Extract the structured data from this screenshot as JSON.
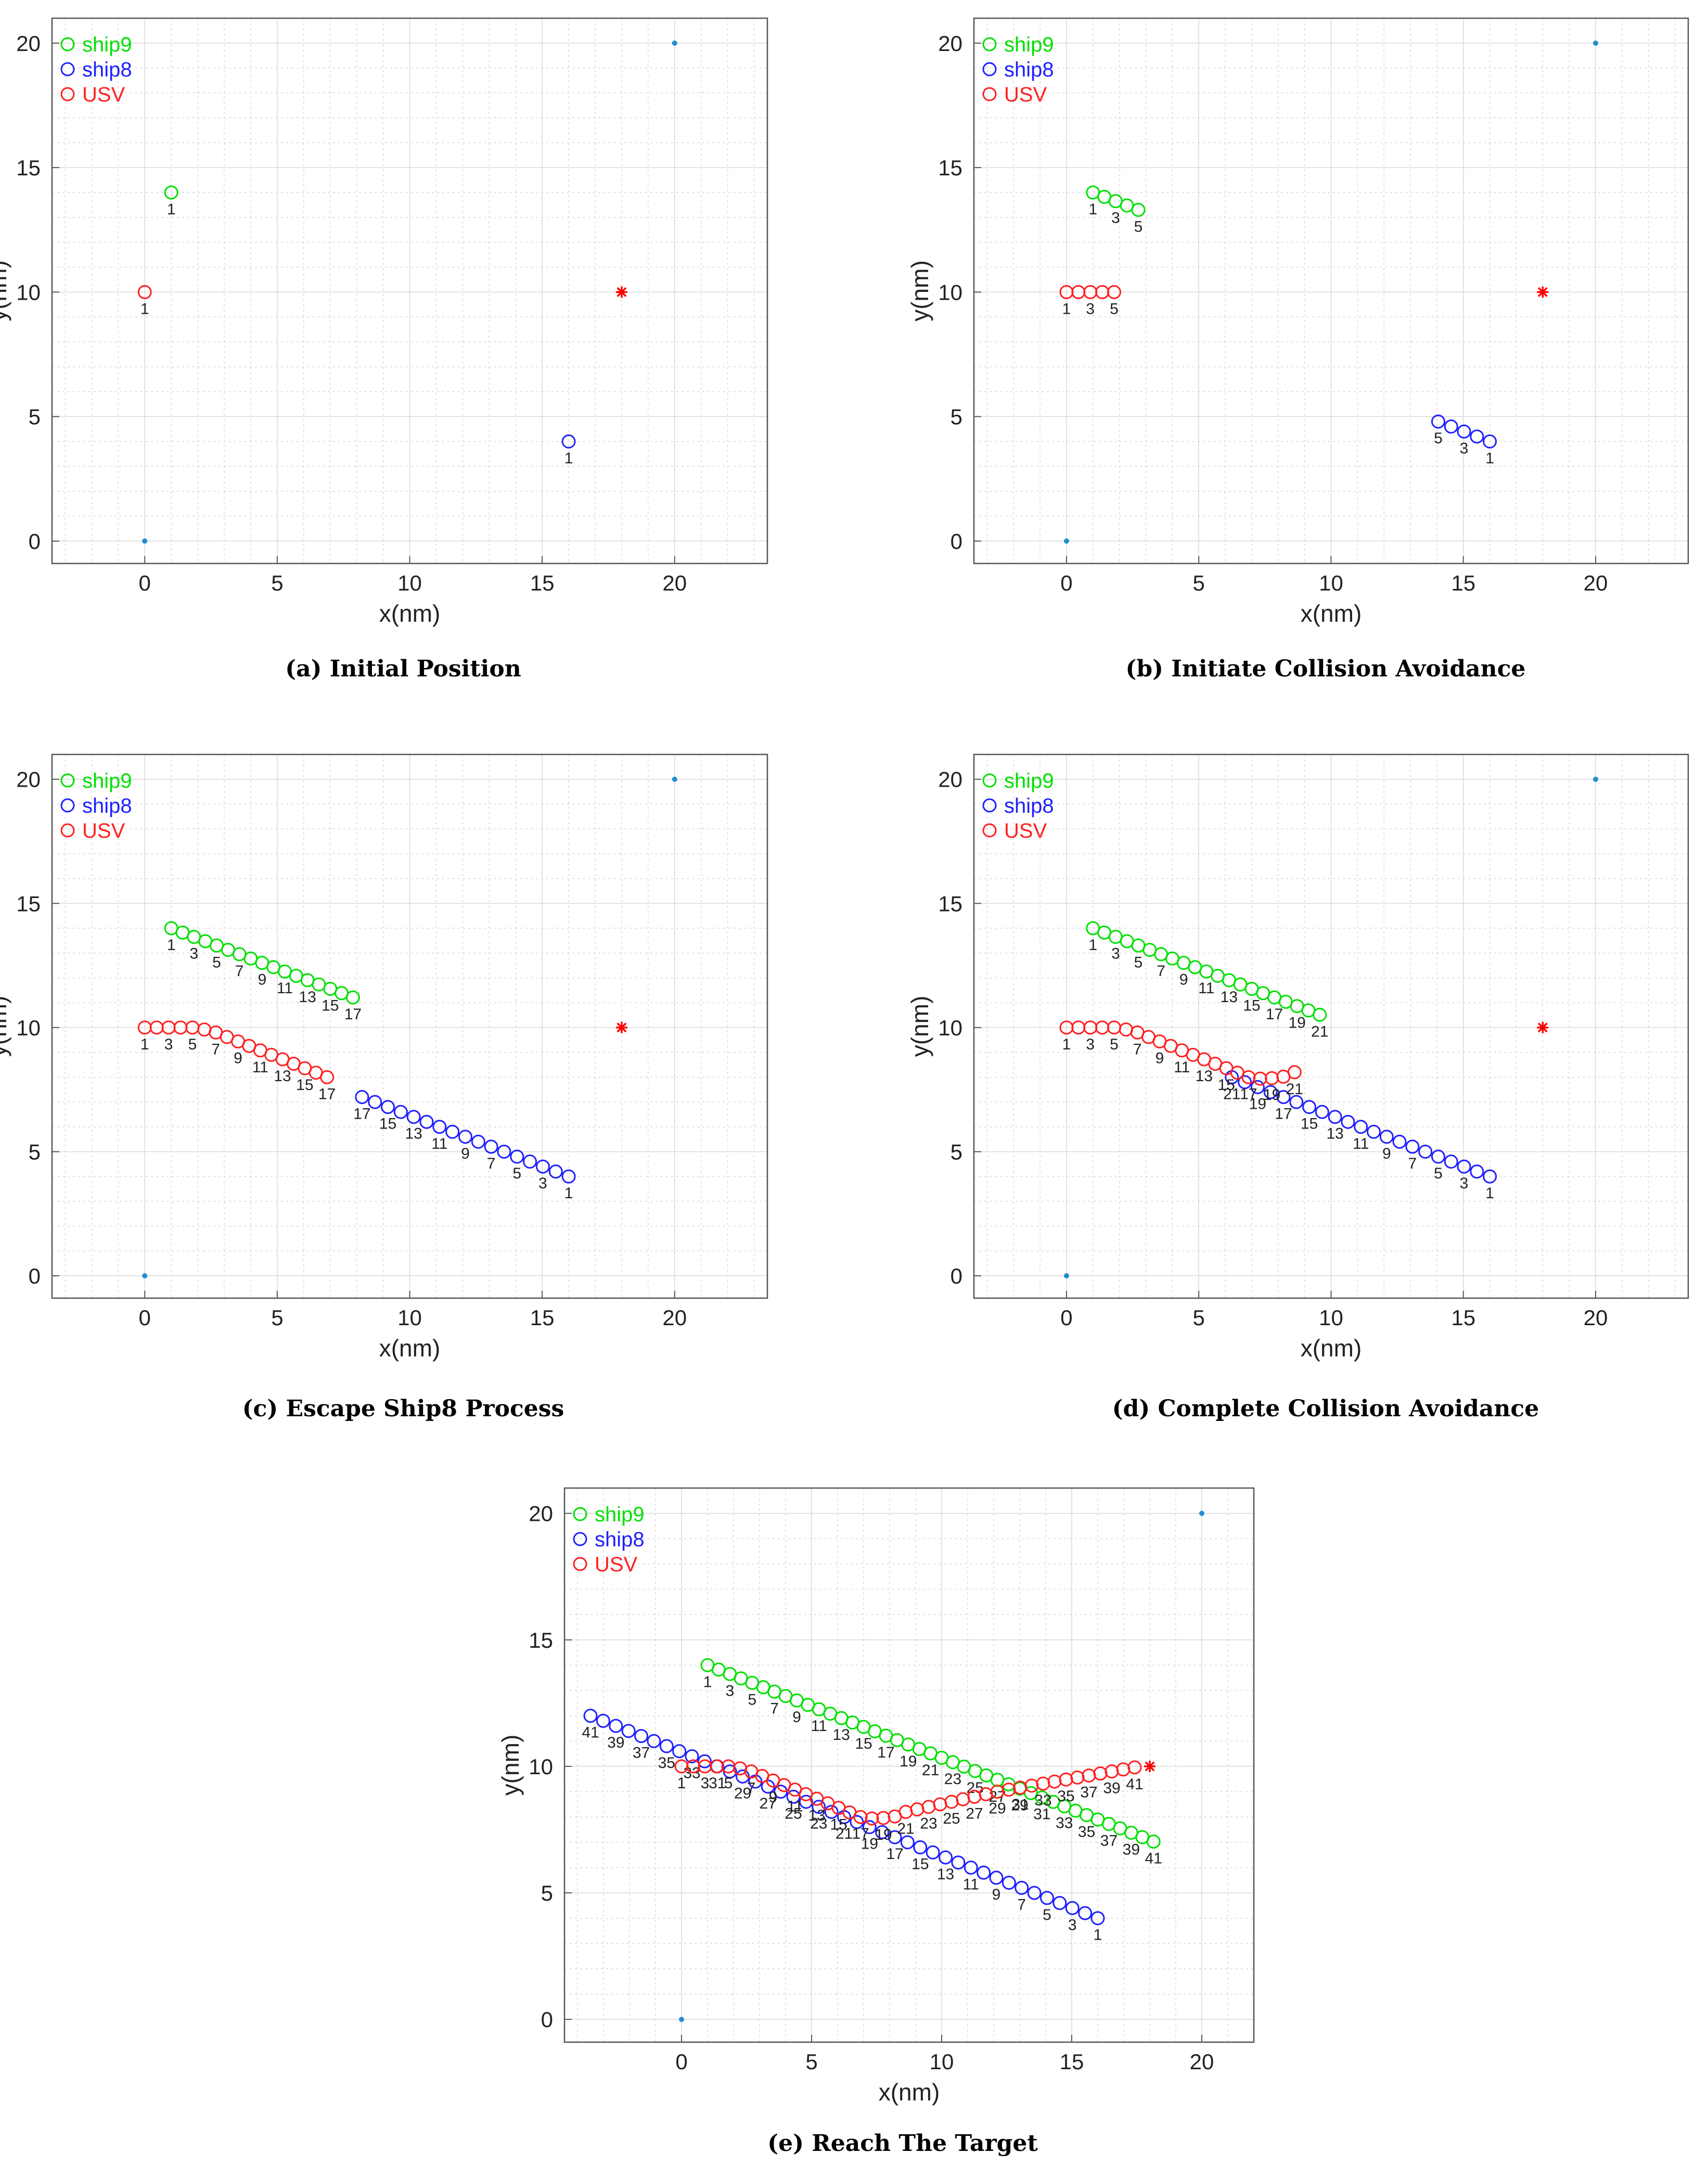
{
  "figure": {
    "panel_a_caption": "(a)  Initial Position",
    "panel_b_caption": "(b)  Initiate Collision Avoidance",
    "panel_c_caption": "(c)  Escape Ship8 Process",
    "panel_d_caption": "(d)  Complete Collision Avoidance",
    "panel_e_caption": "(e)  Reach The Target"
  },
  "colors": {
    "ship9": "#00e000",
    "ship8": "#2020ff",
    "USV": "#ff2020",
    "target": "#ff0000",
    "corner": "#1f8fd0",
    "grid": "#d9d9d9",
    "axis": "#555555"
  },
  "chart_data": [
    {
      "id": "a",
      "type": "scatter",
      "title": "",
      "xlabel": "x(nm)",
      "ylabel": "y(nm)",
      "xlim": [
        -3.5,
        23.5
      ],
      "ylim": [
        -0.9,
        21
      ],
      "xticks": [
        0,
        5,
        10,
        15,
        20
      ],
      "yticks": [
        0,
        5,
        10,
        15,
        20
      ],
      "grid": "minor",
      "legend": [
        "ship9",
        "ship8",
        "USV"
      ],
      "legend_placement": "top-left",
      "target": [
        18,
        10
      ],
      "corners": [
        [
          0,
          0
        ],
        [
          20,
          20
        ]
      ],
      "series": [
        {
          "name": "ship9",
          "start": [
            1,
            14
          ],
          "step": [
            0.4286,
            -0.1743
          ],
          "count": 1,
          "label_side": "below"
        },
        {
          "name": "ship8",
          "start": [
            16,
            4
          ],
          "step": [
            -0.4875,
            0.2
          ],
          "count": 1,
          "label_side": "below"
        },
        {
          "name": "USV",
          "start": [
            0,
            10
          ],
          "waypoints": [
            [
              0,
              10
            ]
          ],
          "count": 1,
          "label_side": "below"
        }
      ]
    },
    {
      "id": "b",
      "type": "scatter",
      "title": "",
      "xlabel": "x(nm)",
      "ylabel": "y(nm)",
      "xlim": [
        -3.5,
        23.5
      ],
      "ylim": [
        -0.9,
        21
      ],
      "xticks": [
        0,
        5,
        10,
        15,
        20
      ],
      "yticks": [
        0,
        5,
        10,
        15,
        20
      ],
      "grid": "minor",
      "legend": [
        "ship9",
        "ship8",
        "USV"
      ],
      "legend_placement": "top-left",
      "target": [
        18,
        10
      ],
      "corners": [
        [
          0,
          0
        ],
        [
          20,
          20
        ]
      ],
      "series": [
        {
          "name": "ship9",
          "start": [
            1,
            14
          ],
          "step": [
            0.4286,
            -0.1743
          ],
          "count": 5,
          "label_side": "below"
        },
        {
          "name": "ship8",
          "start": [
            16,
            4
          ],
          "step": [
            -0.4875,
            0.2
          ],
          "count": 5,
          "label_side": "below"
        },
        {
          "name": "USV",
          "waypoints": [
            [
              0,
              10
            ],
            [
              0.45,
              10
            ],
            [
              0.9,
              10
            ],
            [
              1.35,
              10
            ],
            [
              1.8,
              10
            ]
          ],
          "count": 5,
          "label_side": "below"
        }
      ]
    },
    {
      "id": "c",
      "type": "scatter",
      "title": "",
      "xlabel": "x(nm)",
      "ylabel": "y(nm)",
      "xlim": [
        -3.5,
        23.5
      ],
      "ylim": [
        -0.9,
        21
      ],
      "xticks": [
        0,
        5,
        10,
        15,
        20
      ],
      "yticks": [
        0,
        5,
        10,
        15,
        20
      ],
      "grid": "minor",
      "legend": [
        "ship9",
        "ship8",
        "USV"
      ],
      "legend_placement": "top-left",
      "target": [
        18,
        10
      ],
      "corners": [
        [
          0,
          0
        ],
        [
          20,
          20
        ]
      ],
      "series": [
        {
          "name": "ship9",
          "start": [
            1,
            14
          ],
          "step": [
            0.4286,
            -0.1743
          ],
          "count": 17,
          "label_side": "below"
        },
        {
          "name": "ship8",
          "start": [
            16,
            4
          ],
          "step": [
            -0.4875,
            0.2
          ],
          "count": 17,
          "label_side": "below"
        },
        {
          "name": "USV",
          "waypoints": [
            [
              0,
              10
            ],
            [
              0.45,
              10
            ],
            [
              0.9,
              10
            ],
            [
              1.35,
              10
            ],
            [
              1.8,
              10
            ],
            [
              2.25,
              9.92
            ],
            [
              2.68,
              9.8
            ],
            [
              3.1,
              9.62
            ],
            [
              3.52,
              9.44
            ],
            [
              3.94,
              9.26
            ],
            [
              4.36,
              9.08
            ],
            [
              4.78,
              8.9
            ],
            [
              5.2,
              8.72
            ],
            [
              5.62,
              8.54
            ],
            [
              6.04,
              8.36
            ],
            [
              6.46,
              8.18
            ],
            [
              6.88,
              8.0
            ]
          ],
          "count": 17,
          "label_side": "below"
        }
      ]
    },
    {
      "id": "d",
      "type": "scatter",
      "title": "",
      "xlabel": "x(nm)",
      "ylabel": "y(nm)",
      "xlim": [
        -3.5,
        23.5
      ],
      "ylim": [
        -0.9,
        21
      ],
      "xticks": [
        0,
        5,
        10,
        15,
        20
      ],
      "yticks": [
        0,
        5,
        10,
        15,
        20
      ],
      "grid": "minor",
      "legend": [
        "ship9",
        "ship8",
        "USV"
      ],
      "legend_placement": "top-left",
      "target": [
        18,
        10
      ],
      "corners": [
        [
          0,
          0
        ],
        [
          20,
          20
        ]
      ],
      "series": [
        {
          "name": "ship9",
          "start": [
            1,
            14
          ],
          "step": [
            0.4286,
            -0.1743
          ],
          "count": 21,
          "label_side": "below"
        },
        {
          "name": "ship8",
          "start": [
            16,
            4
          ],
          "step": [
            -0.4875,
            0.2
          ],
          "count": 21,
          "label_side": "below"
        },
        {
          "name": "USV",
          "waypoints": [
            [
              0,
              10
            ],
            [
              0.45,
              10
            ],
            [
              0.9,
              10
            ],
            [
              1.35,
              10
            ],
            [
              1.8,
              10
            ],
            [
              2.25,
              9.92
            ],
            [
              2.68,
              9.8
            ],
            [
              3.1,
              9.62
            ],
            [
              3.52,
              9.44
            ],
            [
              3.94,
              9.26
            ],
            [
              4.36,
              9.08
            ],
            [
              4.78,
              8.9
            ],
            [
              5.2,
              8.72
            ],
            [
              5.62,
              8.54
            ],
            [
              6.04,
              8.36
            ],
            [
              6.46,
              8.18
            ],
            [
              6.88,
              8.0
            ],
            [
              7.32,
              7.94
            ],
            [
              7.76,
              7.96
            ],
            [
              8.2,
              8.02
            ],
            [
              8.62,
              8.2
            ]
          ],
          "count": 21,
          "label_side": "below"
        }
      ]
    },
    {
      "id": "e",
      "type": "scatter",
      "title": "",
      "xlabel": "x(nm)",
      "ylabel": "y(nm)",
      "xlim": [
        -4.5,
        22
      ],
      "ylim": [
        -0.9,
        21
      ],
      "xticks": [
        0,
        5,
        10,
        15,
        20
      ],
      "yticks": [
        0,
        5,
        10,
        15,
        20
      ],
      "grid": "minor",
      "legend": [
        "ship9",
        "ship8",
        "USV"
      ],
      "legend_placement": "top-left",
      "target": [
        18,
        10
      ],
      "corners": [
        [
          0,
          0
        ],
        [
          20,
          20
        ]
      ],
      "series": [
        {
          "name": "ship9",
          "start": [
            1,
            14
          ],
          "step": [
            0.4286,
            -0.1743
          ],
          "count": 41,
          "label_side": "below"
        },
        {
          "name": "ship8",
          "start": [
            16,
            4
          ],
          "step": [
            -0.4875,
            0.2
          ],
          "count": 41,
          "label_side": "below"
        },
        {
          "name": "USV",
          "waypoints": [
            [
              0,
              10
            ],
            [
              0.45,
              10
            ],
            [
              0.9,
              10
            ],
            [
              1.35,
              10
            ],
            [
              1.8,
              10
            ],
            [
              2.25,
              9.92
            ],
            [
              2.68,
              9.8
            ],
            [
              3.1,
              9.62
            ],
            [
              3.52,
              9.44
            ],
            [
              3.94,
              9.26
            ],
            [
              4.36,
              9.08
            ],
            [
              4.78,
              8.9
            ],
            [
              5.2,
              8.72
            ],
            [
              5.62,
              8.54
            ],
            [
              6.04,
              8.36
            ],
            [
              6.46,
              8.18
            ],
            [
              6.88,
              8.0
            ],
            [
              7.32,
              7.94
            ],
            [
              7.76,
              7.96
            ],
            [
              8.2,
              8.02
            ],
            [
              8.62,
              8.2
            ],
            [
              9.06,
              8.3
            ],
            [
              9.5,
              8.4
            ],
            [
              9.94,
              8.5
            ],
            [
              10.38,
              8.6
            ],
            [
              10.82,
              8.7
            ],
            [
              11.26,
              8.8
            ],
            [
              11.7,
              8.9
            ],
            [
              12.14,
              9.0
            ],
            [
              12.58,
              9.08
            ],
            [
              13.02,
              9.16
            ],
            [
              13.46,
              9.24
            ],
            [
              13.9,
              9.32
            ],
            [
              14.34,
              9.4
            ],
            [
              14.78,
              9.48
            ],
            [
              15.22,
              9.56
            ],
            [
              15.66,
              9.64
            ],
            [
              16.1,
              9.72
            ],
            [
              16.54,
              9.8
            ],
            [
              16.98,
              9.88
            ],
            [
              17.42,
              9.96
            ]
          ],
          "count": 41,
          "label_side": "below"
        }
      ]
    }
  ]
}
